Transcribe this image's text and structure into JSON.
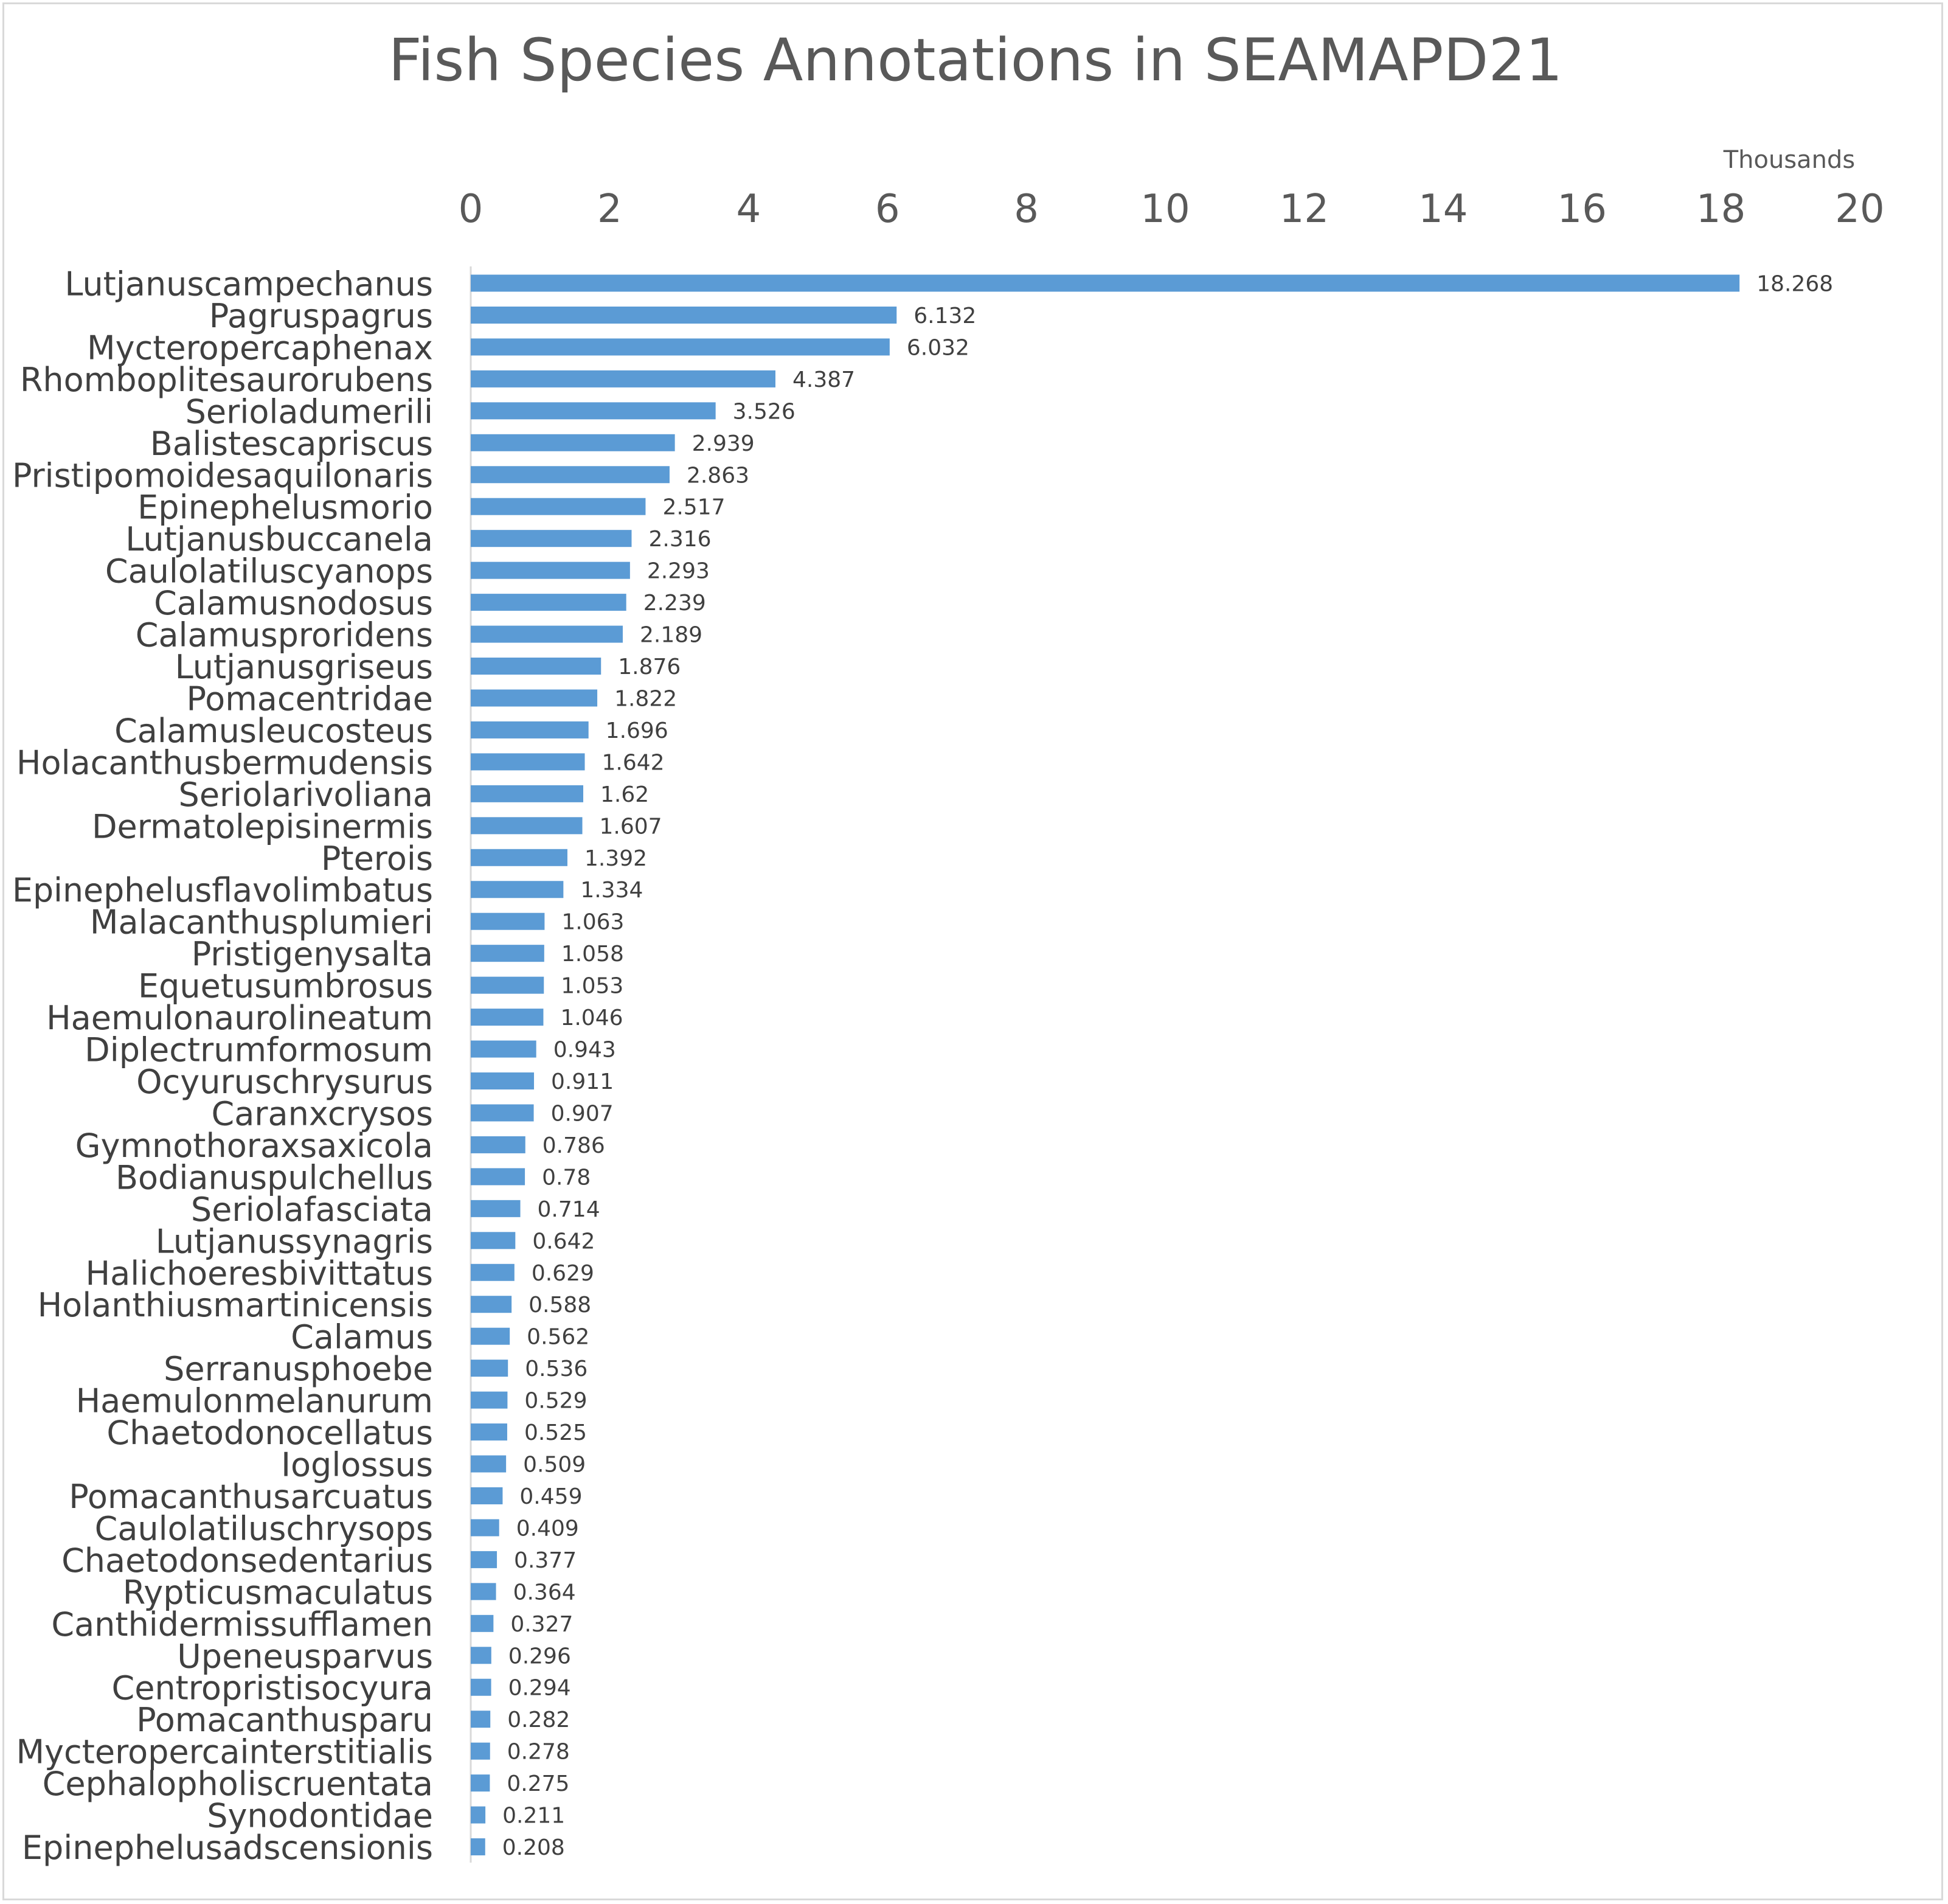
{
  "chart_data": {
    "type": "bar",
    "orientation": "horizontal",
    "title": "Fish Species Annotations in SEAMAPD21",
    "axis_unit_label": "Thousands",
    "xlim": [
      0,
      20
    ],
    "x_ticks": [
      "0",
      "2",
      "4",
      "6",
      "8",
      "10",
      "12",
      "14",
      "16",
      "18",
      "20"
    ],
    "x_tick_values": [
      0,
      2,
      4,
      6,
      8,
      10,
      12,
      14,
      16,
      18,
      20
    ],
    "axis_position": "top",
    "grid": false,
    "legend": "none",
    "bar_color": "#5b9bd5",
    "categories": [
      "Lutjanuscampechanus",
      "Pagruspagrus",
      "Mycteropercaphenax",
      "Rhomboplitesaurorubens",
      "Serioladumerili",
      "Balistescapriscus",
      "Pristipomoidesaquilonaris",
      "Epinephelusmorio",
      "Lutjanusbuccanela",
      "Caulolatiluscyanops",
      "Calamusnodosus",
      "Calamusproridens",
      "Lutjanusgriseus",
      "Pomacentridae",
      "Calamusleucosteus",
      "Holacanthusbermudensis",
      "Seriolarivoliana",
      "Dermatolepisinermis",
      "Pterois",
      "Epinephelusflavolimbatus",
      "Malacanthusplumieri",
      "Pristigenysalta",
      "Equetusumbrosus",
      "Haemulonaurolineatum",
      "Diplectrumformosum",
      "Ocyuruschrysurus",
      "Caranxcrysos",
      "Gymnothoraxsaxicola",
      "Bodianuspulchellus",
      "Seriolafasciata",
      "Lutjanussynagris",
      "Halichoeresbivittatus",
      "Holanthiusmartinicensis",
      "Calamus",
      "Serranusphoebe",
      "Haemulonmelanurum",
      "Chaetodonocellatus",
      "Ioglossus",
      "Pomacanthusarcuatus",
      "Caulolatiluschrysops",
      "Chaetodonsedentarius",
      "Rypticusmaculatus",
      "Canthidermissufflamen",
      "Upeneusparvus",
      "Centropristisocyura",
      "Pomacanthusparu",
      "Mycteropercainterstitialis",
      "Cephalopholiscruentata",
      "Synodontidae",
      "Epinephelusadscensionis"
    ],
    "values": [
      18.268,
      6.132,
      6.032,
      4.387,
      3.526,
      2.939,
      2.863,
      2.517,
      2.316,
      2.293,
      2.239,
      2.189,
      1.876,
      1.822,
      1.696,
      1.642,
      1.62,
      1.607,
      1.392,
      1.334,
      1.063,
      1.058,
      1.053,
      1.046,
      0.943,
      0.911,
      0.907,
      0.786,
      0.78,
      0.714,
      0.642,
      0.629,
      0.588,
      0.562,
      0.536,
      0.529,
      0.525,
      0.509,
      0.459,
      0.409,
      0.377,
      0.364,
      0.327,
      0.296,
      0.294,
      0.282,
      0.278,
      0.275,
      0.211,
      0.208
    ],
    "value_labels": [
      "18.268",
      "6.132",
      "6.032",
      "4.387",
      "3.526",
      "2.939",
      "2.863",
      "2.517",
      "2.316",
      "2.293",
      "2.239",
      "2.189",
      "1.876",
      "1.822",
      "1.696",
      "1.642",
      "1.62",
      "1.607",
      "1.392",
      "1.334",
      "1.063",
      "1.058",
      "1.053",
      "1.046",
      "0.943",
      "0.911",
      "0.907",
      "0.786",
      "0.78",
      "0.714",
      "0.642",
      "0.629",
      "0.588",
      "0.562",
      "0.536",
      "0.529",
      "0.525",
      "0.509",
      "0.459",
      "0.409",
      "0.377",
      "0.364",
      "0.327",
      "0.296",
      "0.294",
      "0.282",
      "0.278",
      "0.275",
      "0.211",
      "0.208"
    ]
  }
}
